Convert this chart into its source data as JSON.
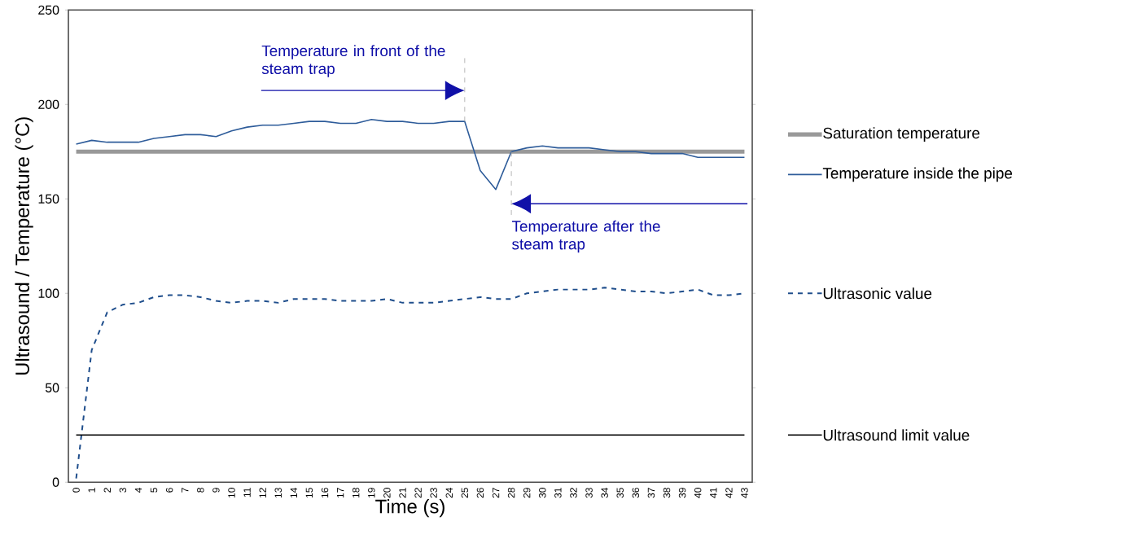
{
  "chart_data": {
    "type": "line",
    "xlabel": "Time (s)",
    "ylabel": "Ultrasound / Temperature (°C)",
    "x": [
      0,
      1,
      2,
      3,
      4,
      5,
      6,
      7,
      8,
      9,
      10,
      11,
      12,
      13,
      14,
      15,
      16,
      17,
      18,
      19,
      20,
      21,
      22,
      23,
      24,
      25,
      26,
      27,
      28,
      29,
      30,
      31,
      32,
      33,
      34,
      35,
      36,
      37,
      38,
      39,
      40,
      41,
      42,
      43
    ],
    "xlim": [
      -0.5,
      43.5
    ],
    "xticks": [
      0,
      1,
      2,
      3,
      4,
      5,
      6,
      7,
      8,
      9,
      10,
      11,
      12,
      13,
      14,
      15,
      16,
      17,
      18,
      19,
      20,
      21,
      22,
      23,
      24,
      25,
      26,
      27,
      28,
      29,
      30,
      31,
      32,
      33,
      34,
      35,
      36,
      37,
      38,
      39,
      40,
      41,
      42,
      43
    ],
    "ylim": [
      0,
      250
    ],
    "yticks": [
      0,
      50,
      100,
      150,
      200,
      250
    ],
    "series": [
      {
        "name": "Saturation temperature",
        "color": "#999999",
        "line_style": "solid",
        "values": [
          175,
          175,
          175,
          175,
          175,
          175,
          175,
          175,
          175,
          175,
          175,
          175,
          175,
          175,
          175,
          175,
          175,
          175,
          175,
          175,
          175,
          175,
          175,
          175,
          175,
          175,
          175,
          175,
          175,
          175,
          175,
          175,
          175,
          175,
          175,
          175,
          175,
          175,
          175,
          175,
          175,
          175,
          175,
          175
        ]
      },
      {
        "name": "Temperature inside the pipe",
        "color": "#2e5c9a",
        "line_style": "solid",
        "values": [
          179,
          181,
          180,
          180,
          180,
          182,
          183,
          184,
          184,
          183,
          186,
          188,
          189,
          189,
          190,
          191,
          191,
          190,
          190,
          192,
          191,
          191,
          190,
          190,
          191,
          191,
          165,
          155,
          175,
          177,
          178,
          177,
          177,
          177,
          176,
          175,
          175,
          174,
          174,
          174,
          172,
          172,
          172,
          172
        ]
      },
      {
        "name": "Ultrasonic value",
        "color": "#1f4e8c",
        "line_style": "dashed",
        "values": [
          2,
          70,
          90,
          94,
          95,
          98,
          99,
          99,
          98,
          96,
          95,
          96,
          96,
          95,
          97,
          97,
          97,
          96,
          96,
          96,
          97,
          95,
          95,
          95,
          96,
          97,
          98,
          97,
          97,
          100,
          101,
          102,
          102,
          102,
          103,
          102,
          101,
          101,
          100,
          101,
          102,
          99,
          99,
          100
        ]
      },
      {
        "name": "Ultrasound limit value",
        "color": "#000000",
        "line_style": "solid",
        "values": [
          25,
          25,
          25,
          25,
          25,
          25,
          25,
          25,
          25,
          25,
          25,
          25,
          25,
          25,
          25,
          25,
          25,
          25,
          25,
          25,
          25,
          25,
          25,
          25,
          25,
          25,
          25,
          25,
          25,
          25,
          25,
          25,
          25,
          25,
          25,
          25,
          25,
          25,
          25,
          25,
          25,
          25,
          25,
          25
        ]
      }
    ],
    "annotations": [
      {
        "text": "Temperature in front of the steam trap",
        "x": 25,
        "y": 191
      },
      {
        "text": "Temperature after the steam trap",
        "x": 28,
        "y": 175
      }
    ],
    "legend": "right",
    "grid": false,
    "marker": "none"
  }
}
